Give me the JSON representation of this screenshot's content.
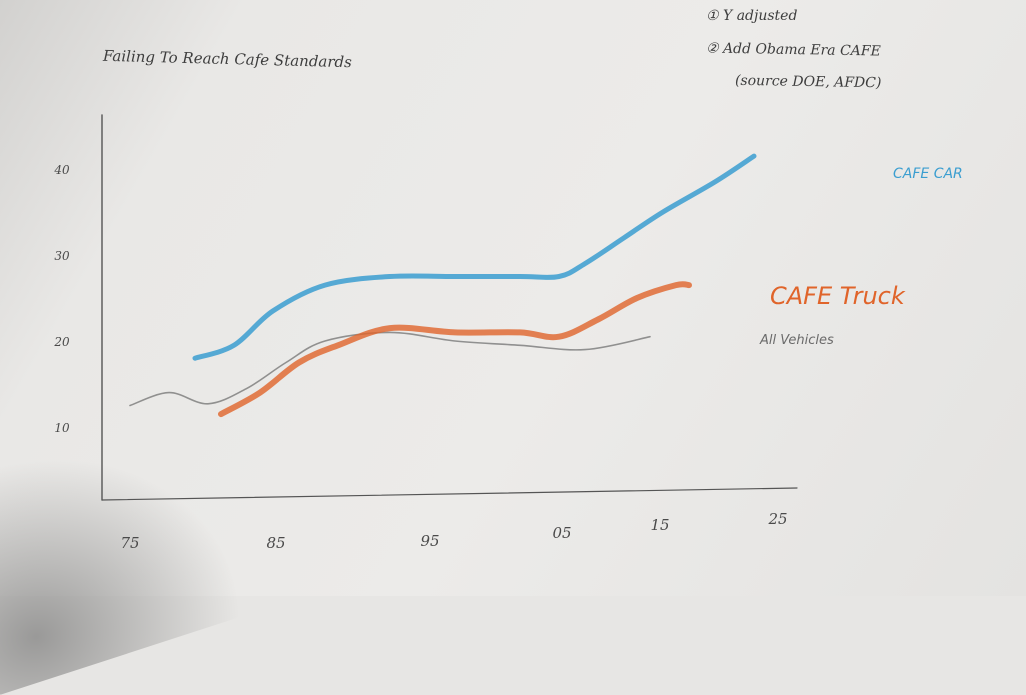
{
  "notes": {
    "item1": "① Y adjusted",
    "item2": "② Add Obama Era CAFE",
    "item2_cont": "(source DOE, AFDC)"
  },
  "colors": {
    "cafe_car": "#3b9ed0",
    "cafe_truck": "#e0642a",
    "all_vehicles": "#6a6a6a",
    "axis": "#555555"
  },
  "chart_data": {
    "type": "line",
    "title": "Failing To Reach Cafe Standards",
    "xlabel": "",
    "ylabel": "",
    "x_ticks": [
      "75",
      "85",
      "95",
      "05",
      "15",
      "25"
    ],
    "y_ticks": [
      10,
      20,
      30,
      40
    ],
    "xlim": [
      1975,
      2025
    ],
    "ylim": [
      5,
      45
    ],
    "grid": false,
    "series": [
      {
        "name": "CAFE CAR",
        "color": "#3b9ed0",
        "x": [
          1980,
          1983,
          1986,
          1990,
          1995,
          2000,
          2005,
          2008,
          2010,
          2013,
          2016,
          2020,
          2023
        ],
        "y": [
          18.0,
          19.5,
          23.5,
          26.5,
          27.5,
          27.5,
          27.5,
          27.5,
          29.0,
          32.0,
          35.0,
          38.5,
          41.5
        ]
      },
      {
        "name": "CAFE Truck",
        "color": "#e0642a",
        "x": [
          1982,
          1985,
          1988,
          1991,
          1995,
          2000,
          2005,
          2008,
          2011,
          2014,
          2017,
          2018
        ],
        "y": [
          11.5,
          14.0,
          17.5,
          19.5,
          21.5,
          21.0,
          21.0,
          20.5,
          22.5,
          25.0,
          26.5,
          26.5
        ]
      },
      {
        "name": "All Vehicles",
        "color": "#6a6a6a",
        "x": [
          1975,
          1978,
          1981,
          1984,
          1987,
          1990,
          1995,
          2000,
          2005,
          2010,
          2015
        ],
        "y": [
          12.5,
          14.0,
          12.7,
          14.5,
          17.5,
          20.0,
          21.0,
          20.0,
          19.5,
          19.0,
          20.5
        ]
      }
    ]
  }
}
